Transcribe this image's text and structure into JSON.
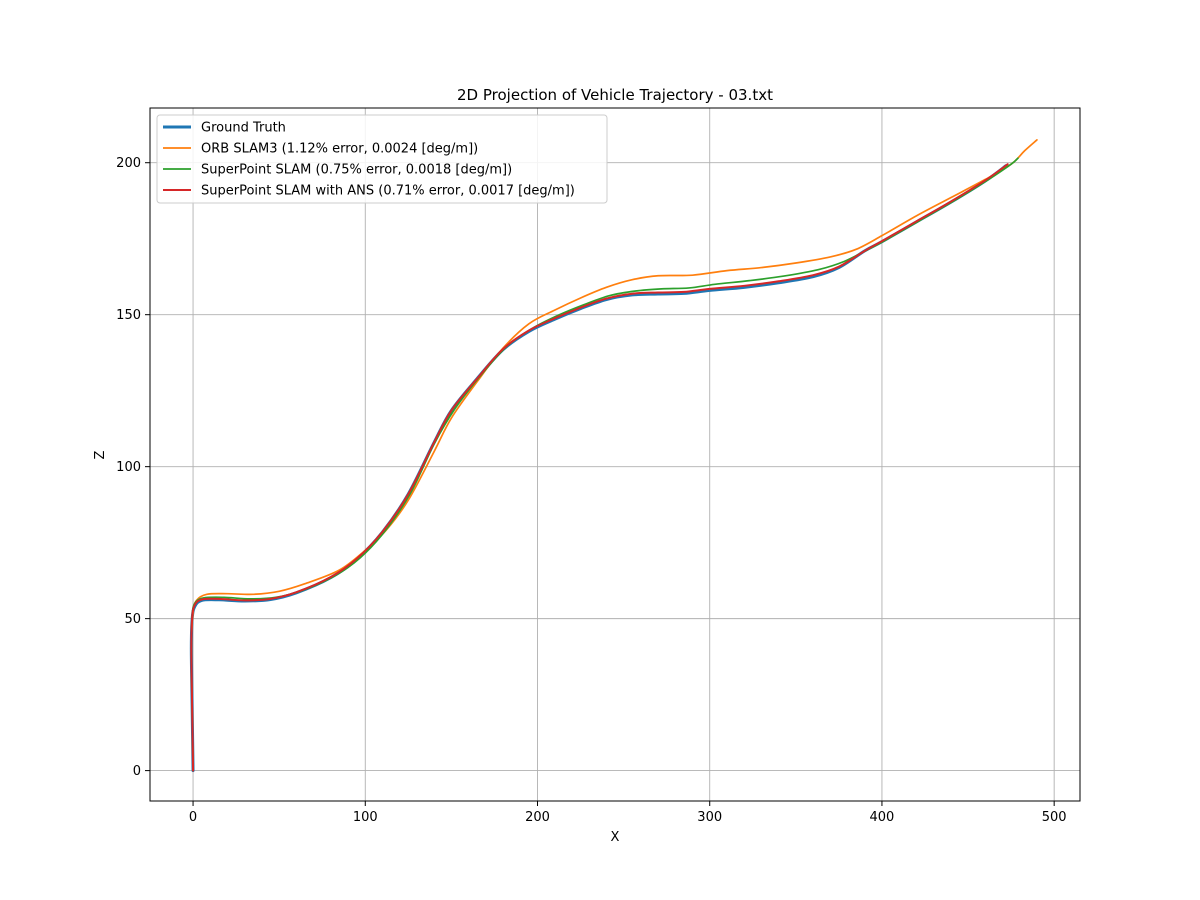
{
  "chart_data": {
    "type": "line",
    "title": "2D Projection of Vehicle Trajectory - 03.txt",
    "xlabel": "X",
    "ylabel": "Z",
    "xlim": [
      -25,
      515
    ],
    "ylim": [
      -10,
      218
    ],
    "xticks": [
      0,
      100,
      200,
      300,
      400,
      500
    ],
    "yticks": [
      0,
      50,
      100,
      150,
      200
    ],
    "grid": true,
    "legend_position": "upper-left",
    "series": [
      {
        "name": "Ground Truth",
        "color": "#1f77b4",
        "points": [
          [
            0,
            0
          ],
          [
            -0.5,
            20
          ],
          [
            -1,
            40
          ],
          [
            -0.5,
            50
          ],
          [
            1,
            54
          ],
          [
            5,
            56
          ],
          [
            15,
            56.2
          ],
          [
            30,
            55.8
          ],
          [
            45,
            56.3
          ],
          [
            60,
            58.5
          ],
          [
            80,
            63.5
          ],
          [
            95,
            69.5
          ],
          [
            110,
            78.5
          ],
          [
            125,
            91
          ],
          [
            140,
            108
          ],
          [
            150,
            118.5
          ],
          [
            165,
            129
          ],
          [
            180,
            138.5
          ],
          [
            195,
            144.5
          ],
          [
            210,
            148.5
          ],
          [
            225,
            152
          ],
          [
            240,
            155
          ],
          [
            255,
            156.5
          ],
          [
            270,
            156.8
          ],
          [
            285,
            157
          ],
          [
            300,
            158
          ],
          [
            320,
            159
          ],
          [
            340,
            160.5
          ],
          [
            360,
            162.5
          ],
          [
            375,
            165.5
          ],
          [
            390,
            171
          ],
          [
            400,
            174
          ],
          [
            420,
            180.5
          ],
          [
            440,
            187
          ],
          [
            460,
            194
          ],
          [
            472,
            199
          ]
        ]
      },
      {
        "name": "ORB SLAM3 (1.12% error, 0.0024 [deg/m])",
        "color": "#ff7f0e",
        "points": [
          [
            0,
            0
          ],
          [
            -0.5,
            20
          ],
          [
            -1,
            40
          ],
          [
            0,
            52
          ],
          [
            2,
            56
          ],
          [
            8,
            58
          ],
          [
            20,
            58.2
          ],
          [
            35,
            58
          ],
          [
            50,
            59
          ],
          [
            65,
            61.5
          ],
          [
            85,
            66
          ],
          [
            100,
            72.5
          ],
          [
            112,
            79
          ],
          [
            125,
            89
          ],
          [
            140,
            105
          ],
          [
            150,
            116
          ],
          [
            165,
            128
          ],
          [
            180,
            139
          ],
          [
            195,
            147
          ],
          [
            210,
            151.5
          ],
          [
            225,
            155.5
          ],
          [
            240,
            159
          ],
          [
            255,
            161.5
          ],
          [
            270,
            162.8
          ],
          [
            290,
            163
          ],
          [
            310,
            164.5
          ],
          [
            330,
            165.5
          ],
          [
            350,
            167
          ],
          [
            370,
            169
          ],
          [
            385,
            171.5
          ],
          [
            400,
            176
          ],
          [
            420,
            182.5
          ],
          [
            440,
            188.5
          ],
          [
            460,
            194.5
          ],
          [
            475,
            199.5
          ],
          [
            483,
            204
          ],
          [
            490,
            207.5
          ]
        ]
      },
      {
        "name": "SuperPoint SLAM (0.75% error, 0.0018 [deg/m])",
        "color": "#2ca02c",
        "points": [
          [
            0,
            0
          ],
          [
            -0.5,
            20
          ],
          [
            -1,
            40
          ],
          [
            -0.5,
            51
          ],
          [
            1,
            55
          ],
          [
            6,
            56.8
          ],
          [
            18,
            57
          ],
          [
            33,
            56.5
          ],
          [
            48,
            57
          ],
          [
            63,
            59.2
          ],
          [
            82,
            64
          ],
          [
            97,
            70
          ],
          [
            111,
            78.5
          ],
          [
            126,
            91
          ],
          [
            140,
            107.5
          ],
          [
            152,
            119
          ],
          [
            167,
            130
          ],
          [
            182,
            139.5
          ],
          [
            197,
            145.5
          ],
          [
            212,
            149.8
          ],
          [
            227,
            153.3
          ],
          [
            242,
            156.3
          ],
          [
            257,
            157.8
          ],
          [
            272,
            158.5
          ],
          [
            288,
            158.8
          ],
          [
            303,
            160
          ],
          [
            323,
            161.2
          ],
          [
            343,
            162.7
          ],
          [
            363,
            164.8
          ],
          [
            378,
            167.5
          ],
          [
            392,
            171.5
          ],
          [
            402,
            174.5
          ],
          [
            422,
            181
          ],
          [
            442,
            187.5
          ],
          [
            462,
            194.5
          ],
          [
            475,
            199.5
          ],
          [
            479,
            201.5
          ]
        ]
      },
      {
        "name": "SuperPoint SLAM with ANS (0.71% error, 0.0017 [deg/m])",
        "color": "#d62728",
        "points": [
          [
            0,
            0
          ],
          [
            -0.5,
            20
          ],
          [
            -1,
            40
          ],
          [
            -0.5,
            50.5
          ],
          [
            1,
            54.5
          ],
          [
            5,
            56.3
          ],
          [
            15,
            56.5
          ],
          [
            30,
            56
          ],
          [
            45,
            56.5
          ],
          [
            60,
            58.7
          ],
          [
            80,
            63.7
          ],
          [
            95,
            69.7
          ],
          [
            110,
            78.6
          ],
          [
            125,
            91
          ],
          [
            140,
            108
          ],
          [
            150,
            118.5
          ],
          [
            165,
            129
          ],
          [
            180,
            138.7
          ],
          [
            195,
            144.8
          ],
          [
            210,
            148.8
          ],
          [
            225,
            152.3
          ],
          [
            240,
            155.3
          ],
          [
            255,
            156.9
          ],
          [
            270,
            157.3
          ],
          [
            285,
            157.5
          ],
          [
            300,
            158.5
          ],
          [
            320,
            159.5
          ],
          [
            340,
            161
          ],
          [
            360,
            163
          ],
          [
            375,
            165.8
          ],
          [
            390,
            171
          ],
          [
            400,
            174.2
          ],
          [
            420,
            180.7
          ],
          [
            440,
            187.2
          ],
          [
            460,
            194.2
          ],
          [
            473,
            199.5
          ]
        ]
      }
    ]
  }
}
